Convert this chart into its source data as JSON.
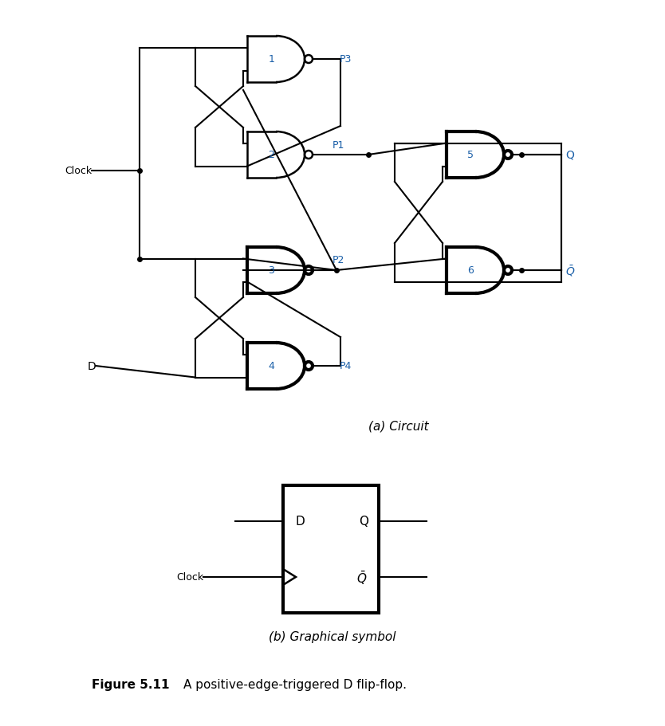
{
  "background_color": "#ffffff",
  "title_a": "(a) Circuit",
  "title_b": "(b) Graphical symbol",
  "figure_caption": "Figure 5.11",
  "figure_text": "A positive-edge-triggered D flip-flop.",
  "gate_lw_thin": 1.8,
  "gate_lw_bold": 3.0,
  "wire_lw": 1.5,
  "label_color": "#1a5fa8",
  "text_color": "#000000"
}
